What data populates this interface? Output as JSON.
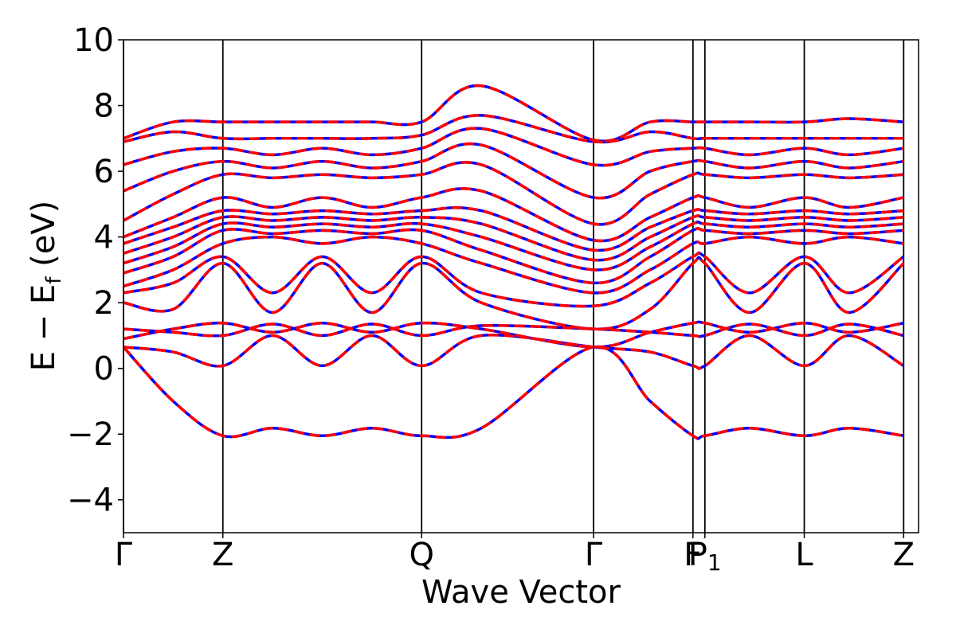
{
  "chart_data": {
    "type": "line",
    "title": "",
    "xlabel": "Wave Vector",
    "ylabel": "E − E",
    "ylabel_sub": "f",
    "ylabel_unit": " (eV)",
    "ylim": [
      -5,
      10
    ],
    "yticks": [
      -4,
      -2,
      0,
      2,
      4,
      6,
      8,
      10
    ],
    "ytick_labels": [
      "−4",
      "−2",
      "0",
      "2",
      "4",
      "6",
      "8",
      "10"
    ],
    "xlim": [
      0,
      8
    ],
    "kpoints": [
      {
        "x": 0,
        "label": "Γ",
        "sub": ""
      },
      {
        "x": 1,
        "label": "Z",
        "sub": ""
      },
      {
        "x": 3,
        "label": "Q",
        "sub": ""
      },
      {
        "x": 4.73,
        "label": "Γ",
        "sub": ""
      },
      {
        "x": 5.73,
        "label": "F",
        "sub": ""
      },
      {
        "x": 5.85,
        "label": "P",
        "sub": "1"
      },
      {
        "x": 6.85,
        "label": "L",
        "sub": ""
      },
      {
        "x": 7.85,
        "label": "Z",
        "sub": ""
      }
    ],
    "series_styles": [
      {
        "color": "#0000ff",
        "dash": "solid"
      },
      {
        "color": "#ff0000",
        "dash": "dashed"
      }
    ],
    "bands": [
      {
        "x": [
          0,
          0.5,
          1,
          1.5,
          2,
          2.5,
          3,
          3.6,
          4.73,
          5.3,
          5.73,
          5.85,
          6.3,
          6.85,
          7.3,
          7.85
        ],
        "y": [
          0.65,
          -1.0,
          -2.05,
          -1.82,
          -2.05,
          -1.82,
          -2.05,
          -1.82,
          0.65,
          -1.0,
          -2.05,
          -2.05,
          -1.82,
          -2.05,
          -1.82,
          -2.05
        ]
      },
      {
        "x": [
          0,
          0.5,
          1,
          1.5,
          2,
          2.5,
          3,
          3.6,
          4.73,
          5.3,
          5.73,
          5.85,
          6.3,
          6.85,
          7.3,
          7.85
        ],
        "y": [
          0.65,
          0.5,
          0.08,
          1.0,
          0.08,
          1.0,
          0.08,
          1.0,
          0.65,
          0.5,
          0.08,
          0.08,
          1.0,
          0.08,
          1.0,
          0.08
        ]
      },
      {
        "x": [
          0,
          0.5,
          1,
          1.5,
          2,
          2.5,
          3,
          3.6,
          4.73,
          5.3,
          5.73,
          5.85,
          6.3,
          6.85,
          7.3,
          7.85
        ],
        "y": [
          0.9,
          1.2,
          1.38,
          1.1,
          1.38,
          1.1,
          1.38,
          1.2,
          0.65,
          1.1,
          1.38,
          1.38,
          1.1,
          1.38,
          1.1,
          1.38
        ]
      },
      {
        "x": [
          0,
          0.5,
          1,
          1.5,
          2,
          2.5,
          3,
          3.6,
          4.73,
          5.3,
          5.73,
          5.85,
          6.3,
          6.85,
          7.3,
          7.85
        ],
        "y": [
          1.2,
          1.1,
          1.0,
          1.35,
          1.0,
          1.35,
          1.0,
          1.3,
          1.2,
          1.1,
          1.0,
          1.0,
          1.35,
          1.0,
          1.35,
          1.0
        ]
      },
      {
        "x": [
          0,
          0.5,
          1,
          1.5,
          2,
          2.5,
          3,
          3.6,
          4.73,
          5.3,
          5.73,
          5.85,
          6.3,
          6.85,
          7.3,
          7.85
        ],
        "y": [
          2.0,
          1.8,
          3.2,
          1.7,
          3.2,
          1.7,
          3.2,
          2.0,
          1.2,
          1.8,
          3.2,
          3.2,
          1.7,
          3.2,
          1.7,
          3.2
        ]
      },
      {
        "x": [
          0,
          0.5,
          1,
          1.5,
          2,
          2.5,
          3,
          3.6,
          4.73,
          5.3,
          5.73,
          5.85,
          6.3,
          6.85,
          7.3,
          7.85
        ],
        "y": [
          2.3,
          2.6,
          3.4,
          2.3,
          3.4,
          2.3,
          3.4,
          2.3,
          1.9,
          2.6,
          3.4,
          3.4,
          2.3,
          3.4,
          2.3,
          3.4
        ]
      },
      {
        "x": [
          0,
          0.5,
          1,
          1.5,
          2,
          2.5,
          3,
          3.6,
          4.73,
          5.3,
          5.73,
          5.85,
          6.3,
          6.85,
          7.3,
          7.85
        ],
        "y": [
          2.5,
          3.0,
          3.8,
          4.0,
          3.8,
          4.0,
          3.8,
          3.2,
          2.3,
          3.0,
          3.8,
          3.8,
          4.0,
          3.8,
          4.0,
          3.8
        ]
      },
      {
        "x": [
          0,
          0.5,
          1,
          1.5,
          2,
          2.5,
          3,
          3.6,
          4.73,
          5.3,
          5.73,
          5.85,
          6.3,
          6.85,
          7.3,
          7.85
        ],
        "y": [
          2.9,
          3.4,
          4.2,
          4.1,
          4.2,
          4.1,
          4.2,
          3.6,
          2.6,
          3.4,
          4.2,
          4.2,
          4.1,
          4.2,
          4.1,
          4.2
        ]
      },
      {
        "x": [
          0,
          0.5,
          1,
          1.5,
          2,
          2.5,
          3,
          3.6,
          4.73,
          5.3,
          5.73,
          5.85,
          6.3,
          6.85,
          7.3,
          7.85
        ],
        "y": [
          3.2,
          3.7,
          4.4,
          4.3,
          4.4,
          4.3,
          4.4,
          4.0,
          3.0,
          3.7,
          4.4,
          4.4,
          4.3,
          4.4,
          4.3,
          4.4
        ]
      },
      {
        "x": [
          0,
          0.5,
          1,
          1.5,
          2,
          2.5,
          3,
          3.6,
          4.73,
          5.3,
          5.73,
          5.85,
          6.3,
          6.85,
          7.3,
          7.85
        ],
        "y": [
          3.5,
          4.0,
          4.6,
          4.5,
          4.6,
          4.5,
          4.6,
          4.4,
          3.3,
          4.0,
          4.6,
          4.6,
          4.5,
          4.6,
          4.5,
          4.6
        ]
      },
      {
        "x": [
          0,
          0.5,
          1,
          1.5,
          2,
          2.5,
          3,
          3.6,
          4.73,
          5.3,
          5.73,
          5.85,
          6.3,
          6.85,
          7.3,
          7.85
        ],
        "y": [
          3.8,
          4.3,
          4.8,
          4.7,
          4.8,
          4.7,
          4.8,
          4.8,
          3.6,
          4.3,
          4.8,
          4.8,
          4.7,
          4.8,
          4.7,
          4.8
        ]
      },
      {
        "x": [
          0,
          0.5,
          1,
          1.5,
          2,
          2.5,
          3,
          3.6,
          4.73,
          5.3,
          5.73,
          5.85,
          6.3,
          6.85,
          7.3,
          7.85
        ],
        "y": [
          4.0,
          4.6,
          5.2,
          4.9,
          5.2,
          4.9,
          5.2,
          5.4,
          3.9,
          4.6,
          5.2,
          5.2,
          4.9,
          5.2,
          4.9,
          5.2
        ]
      },
      {
        "x": [
          0,
          0.5,
          1,
          1.5,
          2,
          2.5,
          3,
          3.6,
          4.73,
          5.3,
          5.73,
          5.85,
          6.3,
          6.85,
          7.3,
          7.85
        ],
        "y": [
          4.5,
          5.3,
          5.9,
          5.8,
          5.9,
          5.8,
          5.9,
          6.2,
          4.4,
          5.3,
          5.9,
          5.9,
          5.8,
          5.9,
          5.8,
          5.9
        ]
      },
      {
        "x": [
          0,
          0.5,
          1,
          1.5,
          2,
          2.5,
          3,
          3.6,
          4.73,
          5.3,
          5.73,
          5.85,
          6.3,
          6.85,
          7.3,
          7.85
        ],
        "y": [
          5.4,
          6.0,
          6.3,
          6.1,
          6.3,
          6.1,
          6.3,
          6.8,
          5.2,
          6.0,
          6.3,
          6.3,
          6.1,
          6.3,
          6.1,
          6.3
        ]
      },
      {
        "x": [
          0,
          0.5,
          1,
          1.5,
          2,
          2.5,
          3,
          3.6,
          4.73,
          5.3,
          5.73,
          5.85,
          6.3,
          6.85,
          7.3,
          7.85
        ],
        "y": [
          6.2,
          6.6,
          6.7,
          6.5,
          6.7,
          6.5,
          6.7,
          7.3,
          6.2,
          6.6,
          6.7,
          6.7,
          6.5,
          6.7,
          6.5,
          6.7
        ]
      },
      {
        "x": [
          0,
          0.5,
          1,
          1.5,
          2,
          2.5,
          3,
          3.6,
          4.73,
          5.3,
          5.73,
          5.85,
          6.3,
          6.85,
          7.3,
          7.85
        ],
        "y": [
          6.9,
          7.2,
          7.0,
          7.0,
          7.0,
          7.0,
          7.1,
          7.7,
          6.9,
          7.2,
          7.0,
          7.0,
          7.0,
          7.0,
          7.0,
          7.0
        ]
      },
      {
        "x": [
          0,
          0.5,
          1,
          1.5,
          2,
          2.5,
          3,
          3.6,
          4.73,
          5.3,
          5.73,
          5.85,
          6.3,
          6.85,
          7.3,
          7.85
        ],
        "y": [
          7.0,
          7.5,
          7.5,
          7.5,
          7.5,
          7.5,
          7.5,
          8.6,
          6.95,
          7.5,
          7.5,
          7.5,
          7.5,
          7.5,
          7.6,
          7.5
        ]
      }
    ]
  }
}
